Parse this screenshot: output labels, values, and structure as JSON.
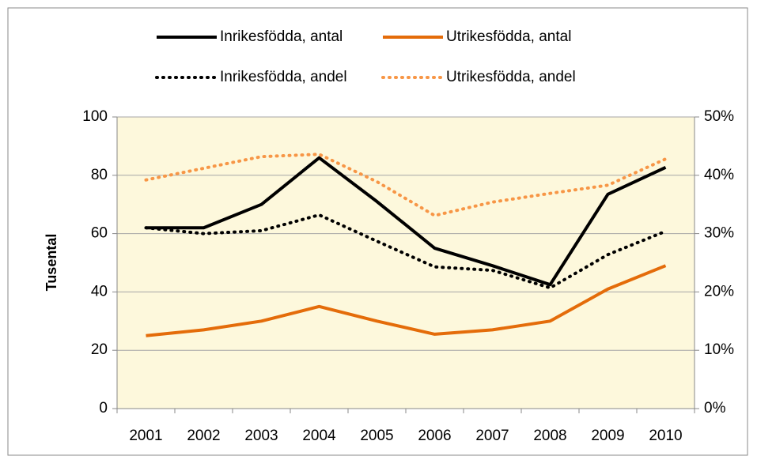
{
  "chart_data": {
    "type": "line",
    "categories": [
      "2001",
      "2002",
      "2003",
      "2004",
      "2005",
      "2006",
      "2007",
      "2008",
      "2009",
      "2010"
    ],
    "y_label": "Tusental",
    "ylim": [
      0,
      100
    ],
    "yticks": [
      0,
      20,
      40,
      60,
      80,
      100
    ],
    "y2lim": [
      0,
      50
    ],
    "y2ticks": [
      {
        "value": 0,
        "label": "0%"
      },
      {
        "value": 10,
        "label": "10%"
      },
      {
        "value": 20,
        "label": "20%"
      },
      {
        "value": 30,
        "label": "30%"
      },
      {
        "value": 40,
        "label": "40%"
      },
      {
        "value": 50,
        "label": "50%"
      }
    ],
    "grid": true,
    "series": [
      {
        "name": "Inrikesfödda, antal",
        "color": "#000000",
        "line_style": "solid",
        "values": [
          62,
          62,
          70,
          86,
          71,
          55,
          49,
          42.5,
          73.5,
          82.7
        ]
      },
      {
        "name": "Utrikesfödda, antal",
        "color": "#e46c0a",
        "line_style": "solid",
        "values": [
          25,
          27,
          30,
          35,
          30,
          25.5,
          27,
          30,
          41,
          49
        ]
      },
      {
        "name": "Inrikesfödda, andel",
        "color": "#000000",
        "line_style": "dotted",
        "axis": "y2",
        "values": [
          31,
          30,
          30.5,
          33.2,
          28.7,
          24.3,
          23.7,
          20.7,
          26.4,
          30.4
        ]
      },
      {
        "name": "Utrikesfödda, andel",
        "color": "#f79646",
        "line_style": "dotted",
        "axis": "y2",
        "values": [
          39.2,
          41.2,
          43.2,
          43.6,
          38.9,
          33.1,
          35.4,
          36.9,
          38.3,
          42.8
        ]
      }
    ]
  }
}
